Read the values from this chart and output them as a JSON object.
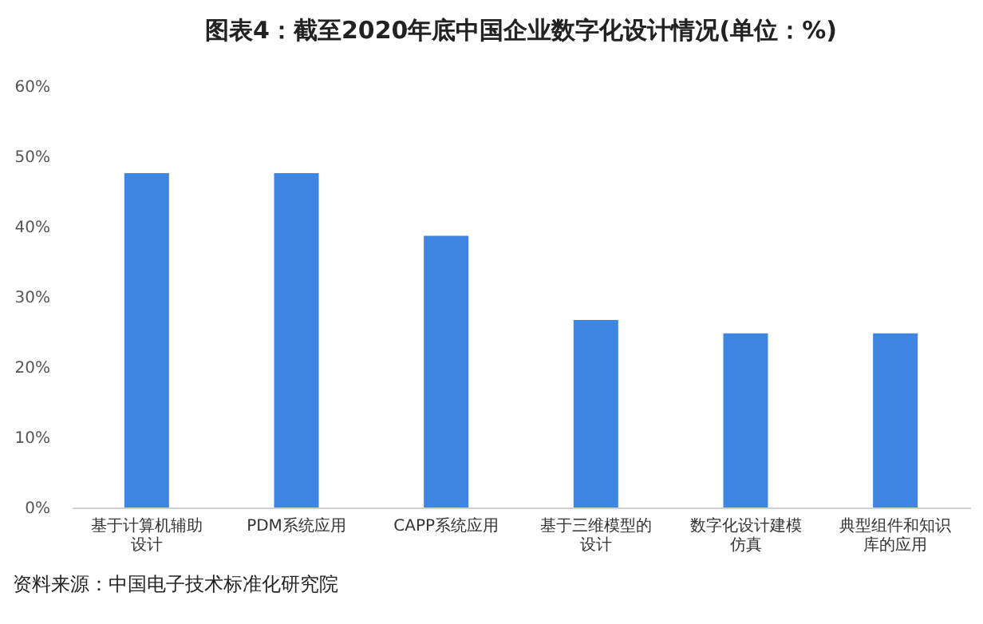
{
  "chart_data": {
    "type": "bar",
    "title": "图表4：截至2020年底中国企业数字化设计情况(单位：%)",
    "categories": [
      "基于计算机辅助设计",
      "PDM系统应用",
      "CAPP系统应用",
      "基于三维模型的设计",
      "数字化设计建模仿真",
      "典型组件和知识库的应用"
    ],
    "values": [
      47.6,
      47.6,
      38.7,
      26.7,
      24.8,
      24.8
    ],
    "color": "#3f85e2",
    "ylim": [
      0,
      60
    ],
    "yticks": [
      {
        "value": 0,
        "label": "0%"
      },
      {
        "value": 10,
        "label": "10%"
      },
      {
        "value": 20,
        "label": "20%"
      },
      {
        "value": 30,
        "label": "30%"
      },
      {
        "value": 40,
        "label": "40%"
      },
      {
        "value": 50,
        "label": "50%"
      },
      {
        "value": 60,
        "label": "60%"
      }
    ],
    "grid": false,
    "annotations": [
      "资料来源：中国电子技术标准化研究院"
    ]
  }
}
